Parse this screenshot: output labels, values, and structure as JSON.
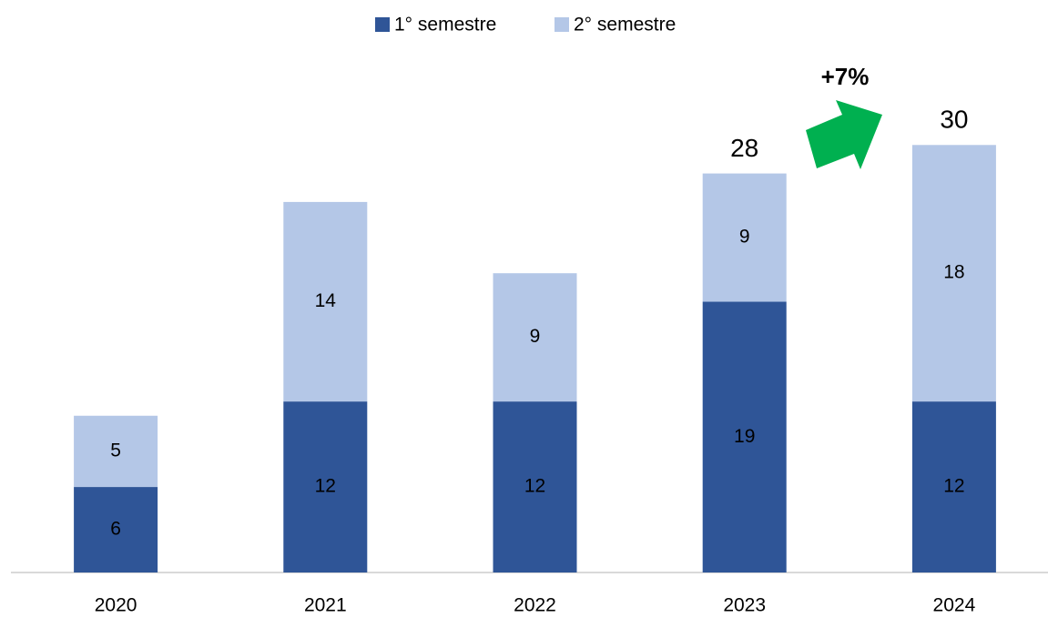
{
  "chart_data": {
    "type": "stacked_bar",
    "categories": [
      "2020",
      "2021",
      "2022",
      "2023",
      "2024"
    ],
    "series": [
      {
        "name": "1° semestre",
        "color": "#2f5597",
        "values": [
          6,
          12,
          12,
          19,
          12
        ]
      },
      {
        "name": "2° semestre",
        "color": "#b4c7e7",
        "values": [
          5,
          14,
          9,
          9,
          18
        ]
      }
    ],
    "totals": [
      null,
      null,
      null,
      28,
      30
    ],
    "annotation": "+7%",
    "annotation_color": "#00b050",
    "ylim": [
      0,
      35
    ],
    "legend": "top"
  }
}
